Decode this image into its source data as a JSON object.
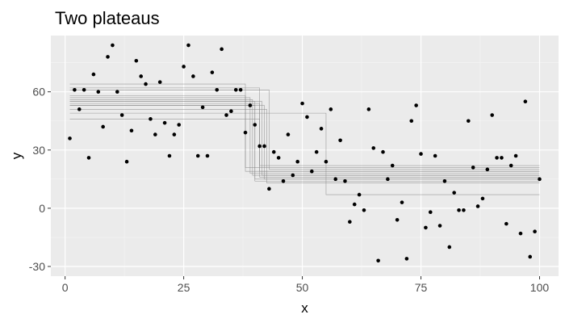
{
  "chart_data": {
    "type": "scatter",
    "title": "Two plateaus",
    "xlabel": "x",
    "ylabel": "y",
    "xlim": [
      -3,
      104
    ],
    "ylim": [
      -35,
      89
    ],
    "x_ticks": [
      0,
      25,
      50,
      75,
      100
    ],
    "y_ticks": [
      -30,
      0,
      30,
      60
    ],
    "grid": true,
    "colors": {
      "panel_background": "#ebebeb",
      "grid_major": "#ffffff",
      "grid_minor": "#f5f5f5",
      "points": "#000000",
      "step_lines": "#808080",
      "tick_labels": "#4d4d4d"
    },
    "points": {
      "x": [
        1,
        2,
        3,
        4,
        5,
        6,
        7,
        8,
        9,
        10,
        11,
        12,
        13,
        14,
        15,
        16,
        17,
        18,
        19,
        20,
        21,
        22,
        23,
        24,
        25,
        26,
        27,
        28,
        29,
        30,
        31,
        32,
        33,
        34,
        35,
        36,
        37,
        38,
        39,
        40,
        41,
        42,
        43,
        44,
        45,
        46,
        47,
        48,
        49,
        50,
        51,
        52,
        53,
        54,
        55,
        56,
        57,
        58,
        59,
        60,
        61,
        62,
        63,
        64,
        65,
        66,
        67,
        68,
        69,
        70,
        71,
        72,
        73,
        74,
        75,
        76,
        77,
        78,
        79,
        80,
        81,
        82,
        83,
        84,
        85,
        86,
        87,
        88,
        89,
        90,
        91,
        92,
        93,
        94,
        95,
        96,
        97,
        98,
        99,
        100
      ],
      "y": [
        36,
        61,
        51,
        61,
        26,
        69,
        60,
        42,
        78,
        84,
        60,
        48,
        24,
        40,
        76,
        68,
        64,
        46,
        38,
        65,
        44,
        27,
        38,
        43,
        73,
        84,
        68,
        27,
        52,
        27,
        70,
        61,
        82,
        48,
        50,
        61,
        61,
        39,
        53,
        43,
        32,
        32,
        10,
        29,
        26,
        14,
        38,
        17,
        24,
        54,
        47,
        19,
        29,
        41,
        24,
        51,
        15,
        35,
        14,
        -7,
        2,
        7,
        -1,
        51,
        31,
        -27,
        29,
        15,
        22,
        -6,
        3,
        -26,
        45,
        53,
        28,
        -10,
        -2,
        27,
        -9,
        14,
        -20,
        8,
        -1,
        -1,
        45,
        21,
        1,
        5,
        20,
        48,
        26,
        26,
        -8,
        22,
        27,
        -13,
        55,
        -25,
        -12,
        15
      ]
    },
    "step_fits": [
      {
        "high": 51,
        "drop": 42.5,
        "low": 13
      },
      {
        "high": 53,
        "drop": 42,
        "low": 15
      },
      {
        "high": 54,
        "drop": 41,
        "low": 16
      },
      {
        "high": 55,
        "drop": 41.5,
        "low": 17
      },
      {
        "high": 55,
        "drop": 40,
        "low": 15
      },
      {
        "high": 56,
        "drop": 39.5,
        "low": 17
      },
      {
        "high": 57,
        "drop": 39,
        "low": 18
      },
      {
        "high": 58,
        "drop": 38,
        "low": 19
      },
      {
        "high": 61,
        "drop": 43,
        "low": 20
      },
      {
        "high": 62,
        "drop": 41,
        "low": 22
      },
      {
        "high": 64,
        "drop": 38,
        "low": 21
      },
      {
        "high": 53,
        "drop": 40,
        "low": 14
      },
      {
        "high": 49,
        "drop": 55,
        "low": 7
      },
      {
        "high": 46,
        "drop": 41,
        "low": 19
      }
    ]
  }
}
